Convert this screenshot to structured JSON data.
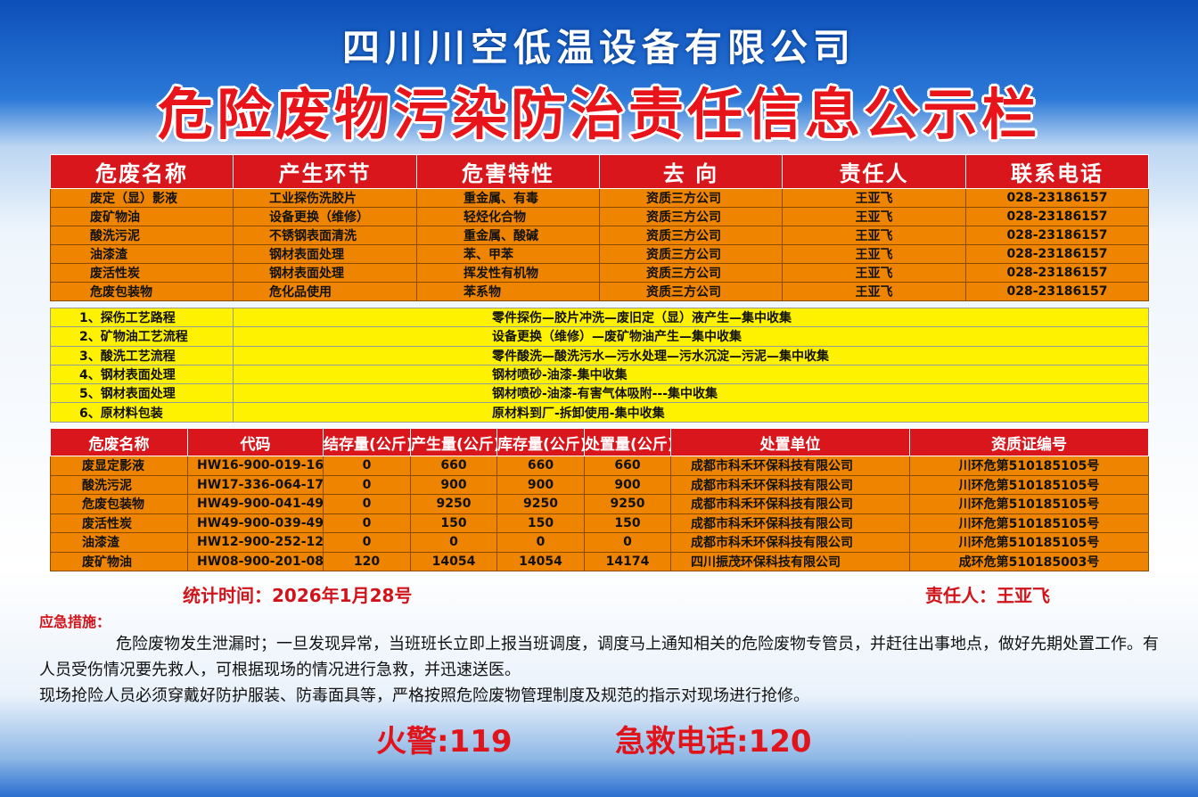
{
  "header": {
    "company": "四川川空低温设备有限公司",
    "title": "危险废物污染防治责任信息公示栏"
  },
  "table1": {
    "headers": [
      "危废名称",
      "产生环节",
      "危害特性",
      "去 向",
      "责任人",
      "联系电话"
    ],
    "rows": [
      [
        "废定（显）影液",
        "工业探伤洗胶片",
        "重金属、有毒",
        "资质三方公司",
        "王亚飞",
        "028-23186157"
      ],
      [
        "废矿物油",
        "设备更换（维修）",
        "轻烃化合物",
        "资质三方公司",
        "王亚飞",
        "028-23186157"
      ],
      [
        "酸洗污泥",
        "不锈钢表面清洗",
        "重金属、酸碱",
        "资质三方公司",
        "王亚飞",
        "028-23186157"
      ],
      [
        "油漆渣",
        "钢材表面处理",
        "苯、甲苯",
        "资质三方公司",
        "王亚飞",
        "028-23186157"
      ],
      [
        "废活性炭",
        "钢材表面处理",
        "挥发性有机物",
        "资质三方公司",
        "王亚飞",
        "028-23186157"
      ],
      [
        "危废包装物",
        "危化品使用",
        "苯系物",
        "资质三方公司",
        "王亚飞",
        "028-23186157"
      ]
    ]
  },
  "table2": {
    "rows": [
      [
        "1、探伤工艺路程",
        "零件探伤—胶片冲洗—废旧定（显）液产生—集中收集"
      ],
      [
        "2、矿物油工艺流程",
        "设备更换（维修）—废矿物油产生—集中收集"
      ],
      [
        "3、酸洗工艺流程",
        "零件酸洗—酸洗污水—污水处理—污水沉淀—污泥—集中收集"
      ],
      [
        "4、钢材表面处理",
        "钢材喷砂-油漆-集中收集"
      ],
      [
        "5、钢材表面处理",
        "钢材喷砂-油漆-有害气体吸附---集中收集"
      ],
      [
        "6、原材料包装",
        "原材料到厂-拆卸使用-集中收集"
      ]
    ]
  },
  "table3": {
    "headers": [
      "危废名称",
      "代码",
      "结存量(公斤)",
      "产生量(公斤)",
      "库存量(公斤)",
      "处置量(公斤)",
      "处置单位",
      "资质证编号"
    ],
    "rows": [
      [
        "废显定影液",
        "HW16-900-019-16",
        "0",
        "660",
        "660",
        "660",
        "成都市科禾环保科技有限公司",
        "川环危第510185105号"
      ],
      [
        "酸洗污泥",
        "HW17-336-064-17",
        "0",
        "900",
        "900",
        "900",
        "成都市科禾环保科技有限公司",
        "川环危第510185105号"
      ],
      [
        "危废包装物",
        "HW49-900-041-49",
        "0",
        "9250",
        "9250",
        "9250",
        "成都市科禾环保科技有限公司",
        "川环危第510185105号"
      ],
      [
        "废活性炭",
        "HW49-900-039-49",
        "0",
        "150",
        "150",
        "150",
        "成都市科禾环保科技有限公司",
        "川环危第510185105号"
      ],
      [
        "油漆渣",
        "HW12-900-252-12",
        "0",
        "0",
        "0",
        "0",
        "成都市科禾环保科技有限公司",
        "川环危第510185105号"
      ],
      [
        "废矿物油",
        "HW08-900-201-08",
        "120",
        "14054",
        "14054",
        "14174",
        "四川振茂环保科技有限公司",
        "成环危第510185003号"
      ]
    ]
  },
  "footer": {
    "stats_time": "统计时间：2026年1月28号",
    "responsible": "责任人：王亚飞"
  },
  "emergency": {
    "title": "应急措施：",
    "paragraphs": [
      "危险废物发生泄漏时；一旦发现异常，当班班长立即上报当班调度，调度马上通知相关的危险废物专管员，并赶往出事地点，做好先期处置工作。有人员受伤情况要先救人，可根据现场的情况进行急救，并迅速送医。",
      "现场抢险人员必须穿戴好防护服装、防毒面具等，严格按照危险废物管理制度及规范的指示对现场进行抢修。"
    ]
  },
  "hotlines": [
    "火警:119",
    "急救电话:120"
  ]
}
